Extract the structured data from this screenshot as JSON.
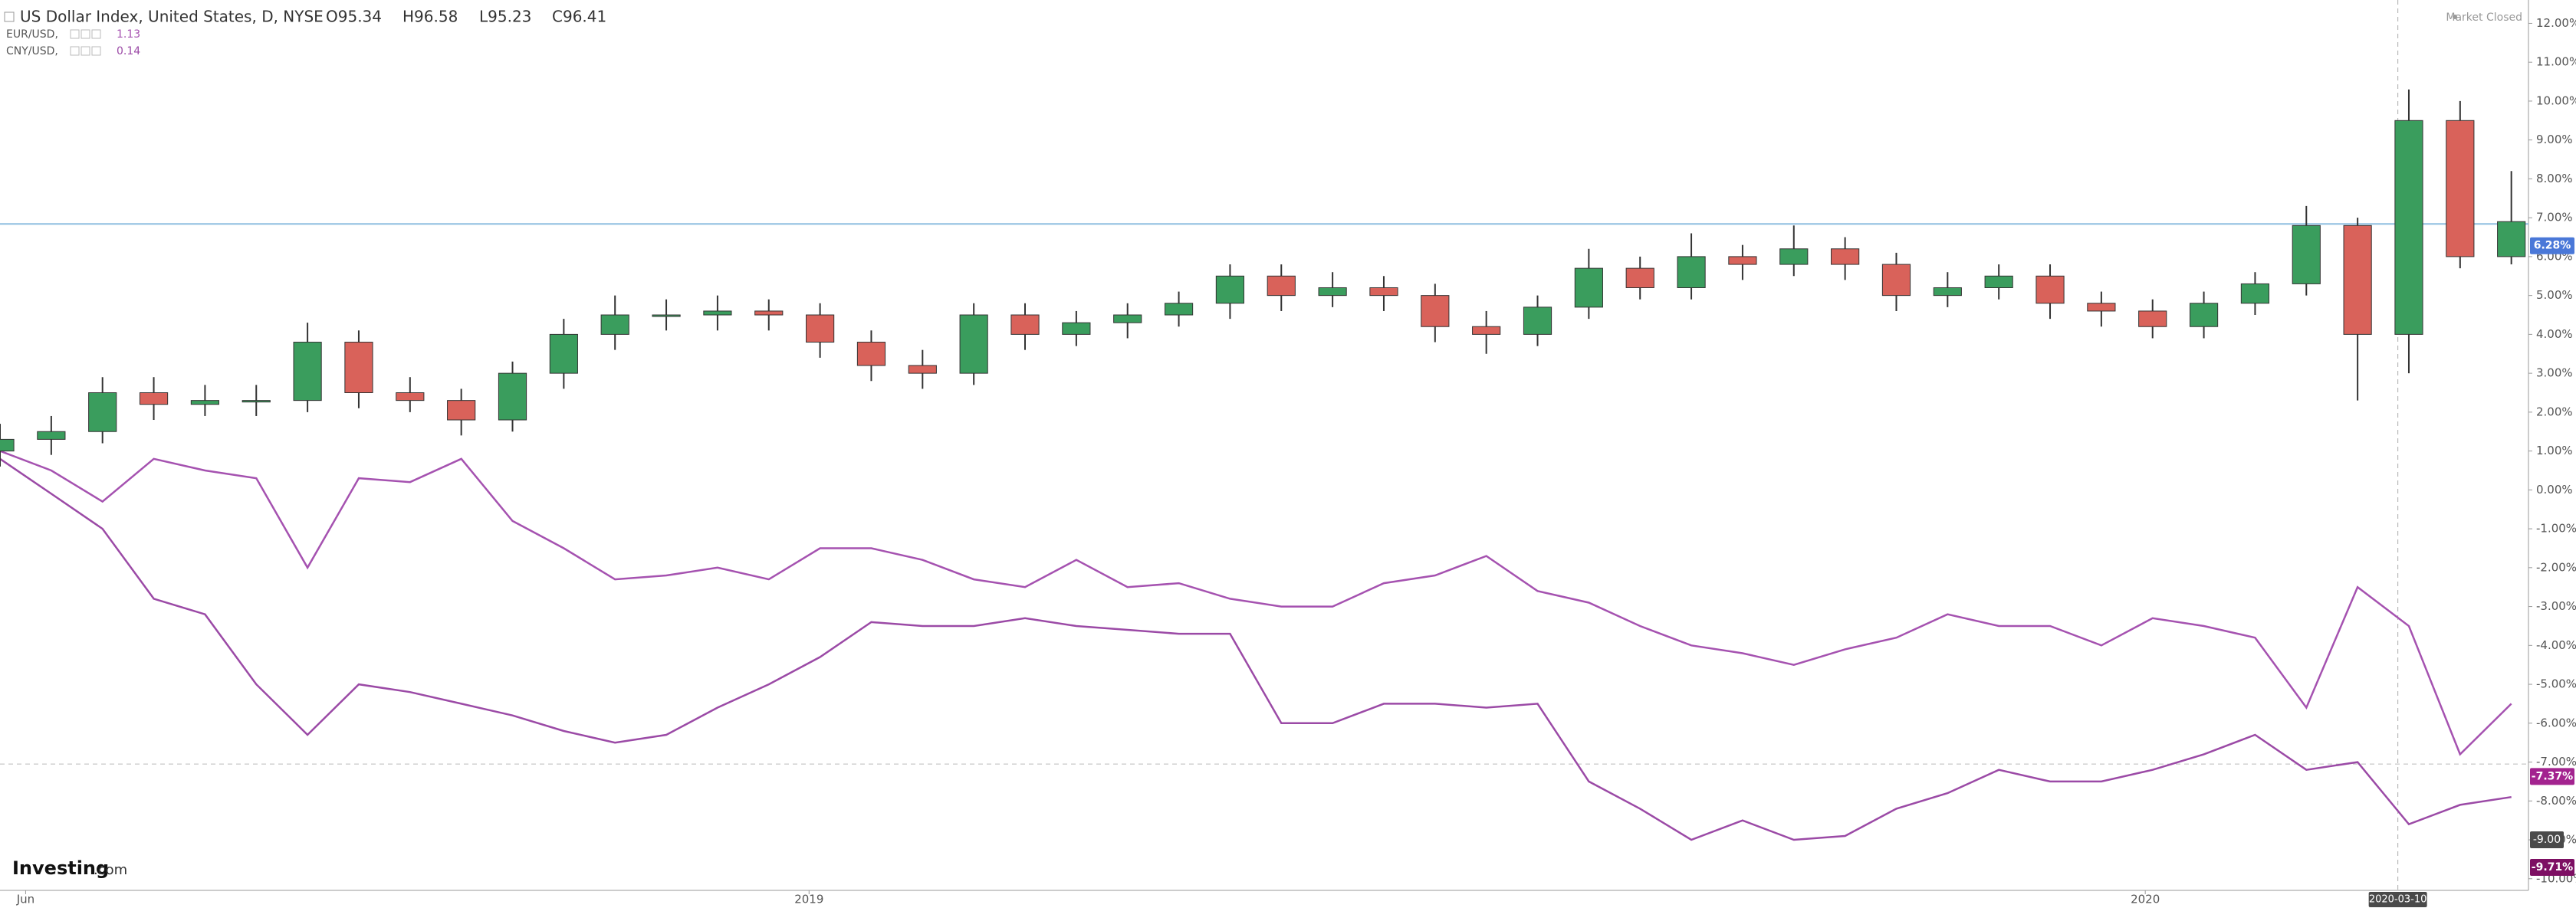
{
  "header": {
    "title": "US Dollar Index, United States, D, NYSE",
    "open": "O95.34",
    "high": "H96.58",
    "low": "L95.23",
    "close": "C96.41",
    "status": "Market Closed"
  },
  "logo": {
    "brand": "Investing",
    "suffix": ".com"
  },
  "chart_data": {
    "type": "candlestick",
    "x": [
      "2018-05-25",
      "2018-06-08",
      "2018-06-22",
      "2018-07-06",
      "2018-07-20",
      "2018-08-03",
      "2018-08-17",
      "2018-08-31",
      "2018-09-14",
      "2018-09-28",
      "2018-10-12",
      "2018-10-26",
      "2018-11-09",
      "2018-11-23",
      "2018-12-07",
      "2018-12-21",
      "2019-01-04",
      "2019-01-18",
      "2019-02-01",
      "2019-02-15",
      "2019-03-01",
      "2019-03-15",
      "2019-03-29",
      "2019-04-12",
      "2019-04-26",
      "2019-05-10",
      "2019-05-24",
      "2019-06-07",
      "2019-06-21",
      "2019-07-05",
      "2019-07-19",
      "2019-08-02",
      "2019-08-16",
      "2019-08-30",
      "2019-09-13",
      "2019-09-27",
      "2019-10-11",
      "2019-10-25",
      "2019-11-08",
      "2019-11-22",
      "2019-12-06",
      "2019-12-20",
      "2020-01-03",
      "2020-01-17",
      "2020-01-31",
      "2020-02-14",
      "2020-02-28",
      "2020-03-13",
      "2020-03-27",
      "2020-04-10"
    ],
    "open": [
      1.0,
      1.3,
      1.5,
      2.5,
      2.2,
      2.3,
      2.3,
      3.8,
      2.5,
      2.3,
      1.8,
      3.0,
      4.0,
      4.5,
      4.5,
      4.6,
      4.5,
      3.8,
      3.2,
      3.0,
      4.5,
      4.0,
      4.3,
      4.5,
      4.8,
      5.5,
      5.0,
      5.2,
      5.0,
      4.2,
      4.0,
      4.7,
      5.7,
      5.2,
      6.0,
      5.8,
      6.2,
      5.8,
      5.0,
      5.2,
      5.5,
      4.8,
      4.6,
      4.2,
      4.8,
      5.3,
      6.8,
      4.0,
      9.5,
      6.0
    ],
    "high": [
      1.7,
      1.9,
      2.9,
      2.9,
      2.7,
      2.7,
      4.3,
      4.1,
      2.9,
      2.6,
      3.3,
      4.4,
      5.0,
      4.9,
      5.0,
      4.9,
      4.8,
      4.1,
      3.6,
      4.8,
      4.8,
      4.6,
      4.8,
      5.1,
      5.8,
      5.8,
      5.6,
      5.5,
      5.3,
      4.6,
      5.0,
      6.2,
      6.0,
      6.6,
      6.3,
      6.8,
      6.5,
      6.1,
      5.6,
      5.8,
      5.8,
      5.1,
      4.9,
      5.1,
      5.6,
      7.3,
      7.0,
      10.3,
      10.0,
      8.2
    ],
    "low": [
      0.6,
      0.9,
      1.2,
      1.8,
      1.9,
      1.9,
      2.0,
      2.1,
      2.0,
      1.4,
      1.5,
      2.6,
      3.6,
      4.1,
      4.1,
      4.1,
      3.4,
      2.8,
      2.6,
      2.7,
      3.6,
      3.7,
      3.9,
      4.2,
      4.4,
      4.6,
      4.7,
      4.6,
      3.8,
      3.5,
      3.7,
      4.4,
      4.9,
      4.9,
      5.4,
      5.5,
      5.4,
      4.6,
      4.7,
      4.9,
      4.4,
      4.2,
      3.9,
      3.9,
      4.5,
      5.0,
      2.3,
      3.0,
      5.7,
      5.8
    ],
    "close": [
      1.3,
      1.5,
      2.5,
      2.2,
      2.3,
      2.3,
      3.8,
      2.5,
      2.3,
      1.8,
      3.0,
      4.0,
      4.5,
      4.5,
      4.6,
      4.5,
      3.8,
      3.2,
      3.0,
      4.5,
      4.0,
      4.3,
      4.5,
      4.8,
      5.5,
      5.0,
      5.2,
      5.0,
      4.2,
      4.0,
      4.7,
      5.7,
      5.2,
      6.0,
      5.8,
      6.2,
      5.8,
      5.0,
      5.2,
      5.5,
      4.8,
      4.6,
      4.2,
      4.8,
      5.3,
      6.8,
      4.0,
      9.5,
      6.0,
      6.9
    ],
    "up_color": "#3a9d5d",
    "down_color": "#d9625a",
    "series": [
      {
        "name": "EUR/USD,",
        "price": 1.13,
        "color": "#a552b0",
        "values": [
          1.0,
          0.5,
          -0.3,
          0.8,
          0.5,
          0.3,
          -2.0,
          0.3,
          0.2,
          0.8,
          -0.8,
          -1.5,
          -2.3,
          -2.2,
          -2.0,
          -2.3,
          -1.5,
          -1.5,
          -1.8,
          -2.3,
          -2.5,
          -1.8,
          -2.5,
          -2.4,
          -2.8,
          -3.0,
          -3.0,
          -2.4,
          -2.2,
          -1.7,
          -2.6,
          -2.9,
          -3.5,
          -4.0,
          -4.2,
          -4.5,
          -4.1,
          -3.8,
          -3.2,
          -3.5,
          -3.5,
          -4.0,
          -3.3,
          -3.5,
          -3.8,
          -5.6,
          -2.5,
          -3.5,
          -6.8,
          -5.5
        ]
      },
      {
        "name": "CNY/USD,",
        "price": 0.14,
        "color": "#9b4aa6",
        "values": [
          0.8,
          -0.1,
          -1.0,
          -2.8,
          -3.2,
          -5.0,
          -6.3,
          -5.0,
          -5.2,
          -5.5,
          -5.8,
          -6.2,
          -6.5,
          -6.3,
          -5.6,
          -5.0,
          -4.3,
          -3.4,
          -3.5,
          -3.5,
          -3.3,
          -3.5,
          -3.6,
          -3.7,
          -3.7,
          -6.0,
          -6.0,
          -5.5,
          -5.5,
          -5.6,
          -5.5,
          -7.5,
          -8.2,
          -9.0,
          -8.5,
          -9.0,
          -8.9,
          -8.2,
          -7.8,
          -7.2,
          -7.5,
          -7.5,
          -7.2,
          -6.8,
          -6.3,
          -7.2,
          -7.0,
          -8.6,
          -8.1,
          -7.9
        ]
      }
    ],
    "xlim": [
      "2018-05-25",
      "2020-04-13"
    ],
    "xticks": [
      {
        "value": "2018-06-01",
        "label": "Jun"
      },
      {
        "value": "2019-01-01",
        "label": "2019"
      },
      {
        "value": "2020-01-01",
        "label": "2020"
      }
    ],
    "ylim": [
      -10.3,
      12.6
    ],
    "yticks": [
      {
        "value": 12,
        "label": "12.00%"
      },
      {
        "value": 11,
        "label": "11.00%"
      },
      {
        "value": 10,
        "label": "10.00%"
      },
      {
        "value": 9,
        "label": "9.00%"
      },
      {
        "value": 8,
        "label": "8.00%"
      },
      {
        "value": 7,
        "label": "7.00%"
      },
      {
        "value": 6,
        "label": "6.00%"
      },
      {
        "value": 5,
        "label": "5.00%"
      },
      {
        "value": 4,
        "label": "4.00%"
      },
      {
        "value": 3,
        "label": "3.00%"
      },
      {
        "value": 2,
        "label": "2.00%"
      },
      {
        "value": 1,
        "label": "1.00%"
      },
      {
        "value": 0,
        "label": "0.00%"
      },
      {
        "value": -1,
        "label": "-1.00%"
      },
      {
        "value": -2,
        "label": "-2.00%"
      },
      {
        "value": -3,
        "label": "-3.00%"
      },
      {
        "value": -4,
        "label": "-4.00%"
      },
      {
        "value": -5,
        "label": "-5.00%"
      },
      {
        "value": -6,
        "label": "-6.00%"
      },
      {
        "value": -7,
        "label": "-7.00%"
      },
      {
        "value": -8,
        "label": "-8.00%"
      },
      {
        "value": -9,
        "label": "-9.00%"
      },
      {
        "value": -10,
        "label": "-10.00%"
      }
    ],
    "price_line": 6.84,
    "dashed_line": -7.05,
    "crosshair": {
      "x": {
        "value": "2020-03-10",
        "label": "2020-03-10"
      },
      "y": {
        "value": -9,
        "label": "-9.00"
      }
    },
    "price_tags": [
      {
        "value": 6.28,
        "label": "6.28%",
        "color": "#4a78d8"
      },
      {
        "value": -7.37,
        "label": "-7.37%",
        "color": "#a3238f"
      },
      {
        "value": -9.71,
        "label": "-9.71%",
        "color": "#7d0f63"
      }
    ]
  }
}
